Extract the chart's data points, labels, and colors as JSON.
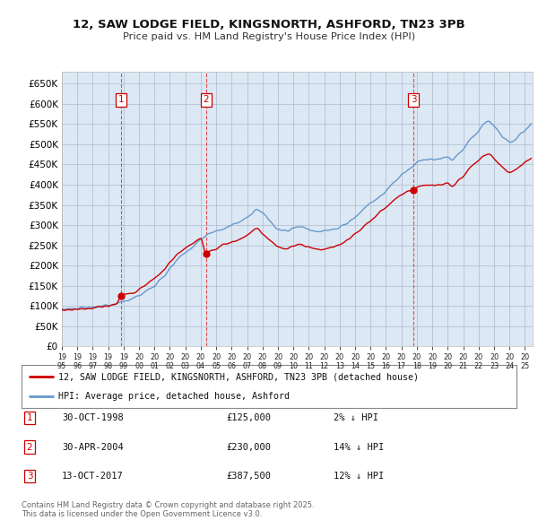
{
  "title": "12, SAW LODGE FIELD, KINGSNORTH, ASHFORD, TN23 3PB",
  "subtitle": "Price paid vs. HM Land Registry's House Price Index (HPI)",
  "ylabel_ticks": [
    "£0",
    "£50K",
    "£100K",
    "£150K",
    "£200K",
    "£250K",
    "£300K",
    "£350K",
    "£400K",
    "£450K",
    "£500K",
    "£550K",
    "£600K",
    "£650K"
  ],
  "ytick_values": [
    0,
    50000,
    100000,
    150000,
    200000,
    250000,
    300000,
    350000,
    400000,
    450000,
    500000,
    550000,
    600000,
    650000
  ],
  "ylim": [
    0,
    680000
  ],
  "xlim_start": 1995.0,
  "xlim_end": 2025.5,
  "hpi_color": "#6699cc",
  "price_color": "#cc0000",
  "vline_color": "#dd3333",
  "shade_color": "#dde8f5",
  "legend_label_price": "12, SAW LODGE FIELD, KINGSNORTH, ASHFORD, TN23 3PB (detached house)",
  "legend_label_hpi": "HPI: Average price, detached house, Ashford",
  "transactions": [
    {
      "num": 1,
      "date_x": 1998.83,
      "price": 125000,
      "label": "30-OCT-1998",
      "price_str": "£125,000",
      "pct": "2% ↓ HPI"
    },
    {
      "num": 2,
      "date_x": 2004.33,
      "price": 230000,
      "label": "30-APR-2004",
      "price_str": "£230,000",
      "pct": "14% ↓ HPI"
    },
    {
      "num": 3,
      "date_x": 2017.79,
      "price": 387500,
      "label": "13-OCT-2017",
      "price_str": "£387,500",
      "pct": "12% ↓ HPI"
    }
  ],
  "footer_line1": "Contains HM Land Registry data © Crown copyright and database right 2025.",
  "footer_line2": "This data is licensed under the Open Government Licence v3.0.",
  "background_color": "#ffffff",
  "chart_bg_color": "#dde8f5",
  "grid_color": "#aabbcc"
}
